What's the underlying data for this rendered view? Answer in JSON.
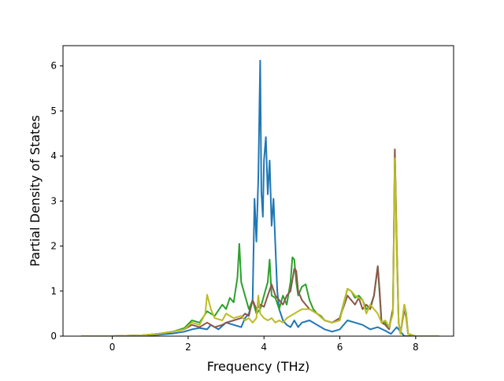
{
  "chart_data": {
    "type": "line",
    "xlabel": "Frequency (THz)",
    "ylabel": "Partial Density of States",
    "xlim": [
      -1.3,
      9.0
    ],
    "ylim": [
      0,
      6.45
    ],
    "xticks": [
      0,
      2,
      4,
      6,
      8
    ],
    "yticks": [
      0,
      1,
      2,
      3,
      4,
      5,
      6
    ],
    "grid": false,
    "legend": "none",
    "series": [
      {
        "color": "#1f77b4",
        "x": [
          -0.8,
          0.0,
          0.8,
          1.2,
          1.6,
          1.9,
          2.1,
          2.3,
          2.5,
          2.6,
          2.8,
          3.0,
          3.2,
          3.4,
          3.5,
          3.6,
          3.7,
          3.75,
          3.8,
          3.85,
          3.9,
          3.93,
          3.97,
          4.0,
          4.05,
          4.1,
          4.15,
          4.2,
          4.25,
          4.3,
          4.35,
          4.4,
          4.5,
          4.6,
          4.7,
          4.8,
          4.9,
          5.0,
          5.2,
          5.4,
          5.6,
          5.8,
          6.0,
          6.2,
          6.4,
          6.6,
          6.8,
          7.0,
          7.2,
          7.35,
          7.5,
          7.7,
          8.0,
          8.3,
          8.6
        ],
        "y": [
          0.0,
          0.0,
          0.01,
          0.03,
          0.06,
          0.1,
          0.15,
          0.18,
          0.15,
          0.25,
          0.15,
          0.3,
          0.25,
          0.2,
          0.4,
          0.5,
          0.8,
          3.05,
          2.1,
          3.5,
          6.12,
          3.2,
          2.65,
          3.9,
          4.42,
          3.15,
          3.9,
          2.45,
          3.05,
          2.0,
          1.0,
          0.6,
          0.35,
          0.25,
          0.2,
          0.35,
          0.2,
          0.3,
          0.35,
          0.25,
          0.15,
          0.1,
          0.15,
          0.35,
          0.3,
          0.25,
          0.15,
          0.2,
          0.12,
          0.05,
          0.2,
          0.0,
          0.0,
          0.0,
          0.0
        ]
      },
      {
        "color": "#2ca02c",
        "x": [
          -0.8,
          0.0,
          0.8,
          1.2,
          1.6,
          1.9,
          2.1,
          2.3,
          2.5,
          2.7,
          2.9,
          3.0,
          3.1,
          3.2,
          3.3,
          3.35,
          3.4,
          3.5,
          3.6,
          3.7,
          3.8,
          3.9,
          4.0,
          4.1,
          4.15,
          4.2,
          4.3,
          4.4,
          4.5,
          4.6,
          4.7,
          4.75,
          4.8,
          4.85,
          4.9,
          5.0,
          5.1,
          5.2,
          5.3,
          5.4,
          5.5,
          5.6,
          5.8,
          6.0,
          6.2,
          6.3,
          6.4,
          6.5,
          6.6,
          6.7,
          6.8,
          6.9,
          7.0,
          7.1,
          7.2,
          7.3,
          7.4,
          7.45,
          7.5,
          7.55,
          7.6,
          7.7,
          7.75,
          7.8,
          8.0,
          8.3,
          8.6
        ],
        "y": [
          0.0,
          0.0,
          0.02,
          0.05,
          0.1,
          0.18,
          0.35,
          0.3,
          0.55,
          0.45,
          0.7,
          0.6,
          0.85,
          0.75,
          1.3,
          2.05,
          1.2,
          0.9,
          0.6,
          0.8,
          0.5,
          0.6,
          0.9,
          1.2,
          1.7,
          0.9,
          0.85,
          0.6,
          0.9,
          0.7,
          1.2,
          1.75,
          1.7,
          1.2,
          0.9,
          1.1,
          1.15,
          0.8,
          0.6,
          0.5,
          0.45,
          0.35,
          0.3,
          0.4,
          1.05,
          1.0,
          0.85,
          0.9,
          0.8,
          0.6,
          0.65,
          0.9,
          1.55,
          0.3,
          0.3,
          0.2,
          0.6,
          4.1,
          2.0,
          0.3,
          0.05,
          0.7,
          0.5,
          0.05,
          0.0,
          0.0,
          0.0
        ]
      },
      {
        "color": "#8c564b",
        "x": [
          -0.8,
          0.0,
          0.8,
          1.2,
          1.6,
          1.9,
          2.1,
          2.3,
          2.5,
          2.7,
          2.9,
          3.0,
          3.2,
          3.4,
          3.5,
          3.6,
          3.7,
          3.8,
          3.9,
          4.0,
          4.1,
          4.2,
          4.3,
          4.4,
          4.5,
          4.6,
          4.7,
          4.8,
          4.85,
          4.9,
          5.0,
          5.1,
          5.2,
          5.4,
          5.6,
          5.8,
          6.0,
          6.2,
          6.3,
          6.4,
          6.5,
          6.6,
          6.7,
          6.8,
          6.9,
          7.0,
          7.05,
          7.1,
          7.2,
          7.3,
          7.4,
          7.45,
          7.5,
          7.55,
          7.6,
          7.7,
          7.75,
          7.8,
          8.0,
          8.3,
          8.6
        ],
        "y": [
          0.0,
          0.0,
          0.02,
          0.05,
          0.1,
          0.15,
          0.25,
          0.2,
          0.3,
          0.2,
          0.25,
          0.3,
          0.35,
          0.4,
          0.5,
          0.45,
          0.8,
          0.6,
          0.7,
          0.65,
          0.9,
          1.15,
          0.9,
          0.8,
          0.7,
          0.9,
          1.0,
          1.5,
          1.45,
          1.0,
          0.8,
          0.7,
          0.6,
          0.5,
          0.35,
          0.3,
          0.4,
          0.9,
          0.8,
          0.7,
          0.85,
          0.6,
          0.7,
          0.6,
          0.9,
          1.55,
          1.0,
          0.3,
          0.25,
          0.15,
          0.6,
          4.15,
          2.0,
          0.3,
          0.05,
          0.6,
          0.4,
          0.05,
          0.0,
          0.0,
          0.0
        ]
      },
      {
        "color": "#bcbd22",
        "x": [
          -0.8,
          0.0,
          0.8,
          1.2,
          1.6,
          1.9,
          2.1,
          2.3,
          2.45,
          2.5,
          2.6,
          2.7,
          2.9,
          3.0,
          3.2,
          3.4,
          3.5,
          3.6,
          3.7,
          3.8,
          3.85,
          3.9,
          4.0,
          4.1,
          4.2,
          4.3,
          4.4,
          4.5,
          4.6,
          4.7,
          4.8,
          4.9,
          5.0,
          5.2,
          5.4,
          5.6,
          5.8,
          6.0,
          6.2,
          6.3,
          6.4,
          6.5,
          6.6,
          6.7,
          6.8,
          6.9,
          7.0,
          7.1,
          7.2,
          7.3,
          7.4,
          7.45,
          7.5,
          7.55,
          7.6,
          7.7,
          7.75,
          7.8,
          8.0,
          8.3,
          8.6
        ],
        "y": [
          0.0,
          0.0,
          0.02,
          0.05,
          0.1,
          0.15,
          0.3,
          0.25,
          0.5,
          0.92,
          0.6,
          0.4,
          0.35,
          0.5,
          0.4,
          0.45,
          0.35,
          0.4,
          0.3,
          0.4,
          0.9,
          0.5,
          0.4,
          0.35,
          0.4,
          0.3,
          0.35,
          0.3,
          0.4,
          0.45,
          0.5,
          0.55,
          0.6,
          0.6,
          0.5,
          0.35,
          0.3,
          0.35,
          1.05,
          1.0,
          0.9,
          0.85,
          0.8,
          0.5,
          0.7,
          0.6,
          0.5,
          0.3,
          0.35,
          0.2,
          0.5,
          3.95,
          1.8,
          0.3,
          0.05,
          0.7,
          0.45,
          0.05,
          0.0,
          0.0,
          0.0
        ]
      }
    ]
  }
}
